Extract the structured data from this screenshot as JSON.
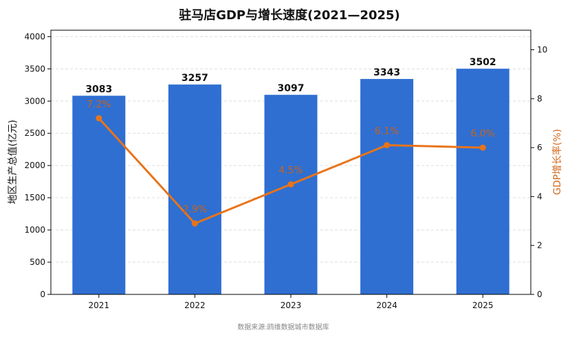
{
  "chart_data": {
    "type": "bar",
    "title": "驻马店GDP与增长速度(2021—2025)",
    "categories": [
      "2021",
      "2022",
      "2023",
      "2024",
      "2025"
    ],
    "series": [
      {
        "name": "地区生产总值(亿元)",
        "type": "bar",
        "axis": "left",
        "values": [
          3083,
          3257,
          3097,
          3343,
          3502
        ],
        "labels": [
          "3083",
          "3257",
          "3097",
          "3343",
          "3502"
        ],
        "color": "#2f6fd1"
      },
      {
        "name": "GDP增长率(%)",
        "type": "line",
        "axis": "right",
        "values": [
          7.2,
          2.9,
          4.5,
          6.1,
          6.0
        ],
        "labels": [
          "7.2%",
          "2.9%",
          "4.5%",
          "6.1%",
          "6.0%"
        ],
        "color": "#e8741a"
      }
    ],
    "y_left": {
      "label": "地区生产总值(亿元)",
      "ylim": [
        0,
        4100
      ],
      "ticks": [
        "0",
        "500",
        "1000",
        "1500",
        "2000",
        "2500",
        "3000",
        "3500",
        "4000"
      ]
    },
    "y_right": {
      "label": "GDP增长率(%)",
      "ylim": [
        0,
        10.8
      ],
      "ticks": [
        "0",
        "2",
        "4",
        "6",
        "8",
        "10"
      ]
    },
    "grid": true,
    "source": "数据来源:鸥维数据城市数据库"
  }
}
